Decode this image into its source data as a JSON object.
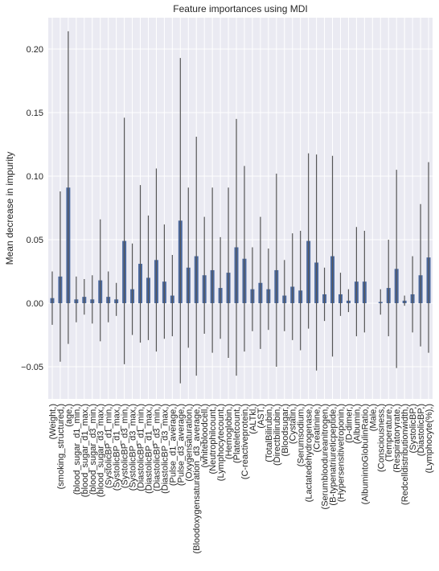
{
  "chart_data": {
    "type": "bar",
    "title": "Feature importances using MDI",
    "y_label": "Mean decrease in impurity",
    "categories": [
      "(Weight,)",
      "(smoking_structured,)",
      "(age,)",
      "(blood_sugar_d1_min,)",
      "(blood_sugar_d1_max,)",
      "(blood_sugar_d3_min,)",
      "(blood_sugar_d3_max,)",
      "(SystolicBP_d1_min,)",
      "(SystolicBP_d1_max,)",
      "(SystolicBP_d3_min,)",
      "(SystolicBP_d3_max,)",
      "(DiastolicBP_d1_min,)",
      "(DiastolicBP_d1_max,)",
      "(DiastolicBP_d3_min,)",
      "(DiastolicBP_d3_max,)",
      "(Pulse_d1_average,)",
      "(Pulse_d3_average,)",
      "(Oxygensaturation,)",
      "(Bloodoxygensaturation_d3_average,)",
      "(whitebloodcell,)",
      "(Neutrophilcount,)",
      "(Lymphocytecount,)",
      "(Hemoglobin,)",
      "(Plateletcount,)",
      "(C-reactiveprotein,)",
      "(ALTkl,)",
      "(AST,)",
      "(TotalBilirubin,)",
      "(Directbilirubin,)",
      "(Bloodsugar,)",
      "(Cystatin,)",
      "(Serumsodium,)",
      "(Lactatedehydrogenase,)",
      "(Creatinine,)",
      "(Serumbloodureanitrogen,)",
      "(B-typenatriureticpeptide,)",
      "(Hypersensitivetroponin,)",
      "(D-dimer,)",
      "(Albumin,)",
      "(AlbumintoGlobulinRatio,)",
      "(Male,)",
      "(Consciousness,)",
      "(Temperature,)",
      "(Respiratoryrate,)",
      "(Redcelldistributionwidth,)",
      "(SystolicBP,)",
      "(DiastolicBP,)",
      "(Lymphocyte(%),)"
    ],
    "values": [
      0.004,
      0.021,
      0.091,
      0.003,
      0.005,
      0.003,
      0.018,
      0.005,
      0.003,
      0.049,
      0.011,
      0.031,
      0.02,
      0.034,
      0.017,
      0.006,
      0.065,
      0.028,
      0.037,
      0.022,
      0.026,
      0.012,
      0.024,
      0.044,
      0.035,
      0.011,
      0.016,
      0.011,
      0.026,
      0.006,
      0.013,
      0.01,
      0.049,
      0.032,
      0.007,
      0.037,
      0.007,
      0.002,
      0.017,
      0.017,
      0,
      0.001,
      0.012,
      0.027,
      0.002,
      0.007,
      0.022,
      0.036
    ],
    "errors": [
      0.021,
      0.067,
      0.123,
      0.018,
      0.014,
      0.019,
      0.048,
      0.02,
      0.013,
      0.097,
      0.036,
      0.062,
      0.049,
      0.072,
      0.045,
      0.032,
      0.128,
      0.063,
      0.094,
      0.046,
      0.065,
      0.04,
      0.067,
      0.101,
      0.073,
      0.033,
      0.052,
      0.032,
      0.076,
      0.028,
      0.042,
      0.047,
      0.069,
      0.085,
      0.021,
      0.079,
      0.017,
      0.009,
      0.043,
      0.04,
      0,
      0.01,
      0.038,
      0.078,
      0.004,
      0.03,
      0.056,
      0.075
    ],
    "color": "#4a69a0",
    "error_color": "#555555",
    "ylim": [
      -0.0753,
      0.2247
    ],
    "yticks": [
      {
        "value": -0.05,
        "label": "−0.05"
      },
      {
        "value": 0,
        "label": "0.00"
      },
      {
        "value": 0.05,
        "label": "0.05"
      },
      {
        "value": 0.1,
        "label": "0.10"
      },
      {
        "value": 0.15,
        "label": "0.15"
      },
      {
        "value": 0.2,
        "label": "0.20"
      }
    ],
    "grid": true
  }
}
